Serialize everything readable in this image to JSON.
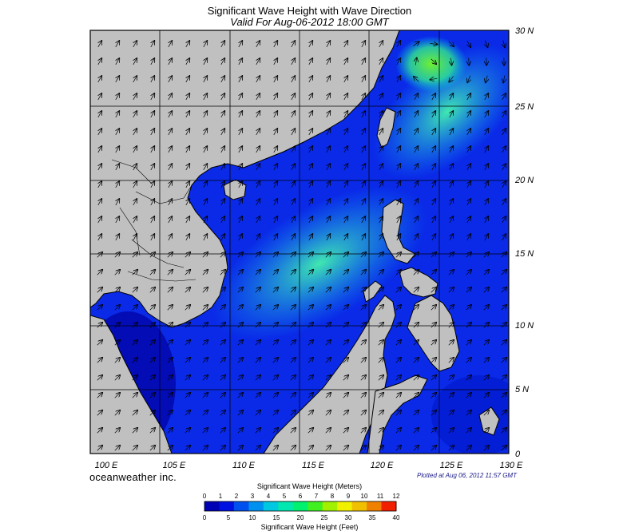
{
  "header": {
    "title": "Significant Wave Height with Wave Direction",
    "subtitle": "Valid For Aug-06-2012 18:00 GMT"
  },
  "map": {
    "lon_range": [
      100,
      130
    ],
    "lat_range": [
      0,
      30
    ],
    "lon_ticks": [
      "100 E",
      "105 E",
      "110 E",
      "115 E",
      "120 E",
      "125 E",
      "130 E"
    ],
    "lat_ticks": [
      "30 N",
      "25 N",
      "20 N",
      "15 N",
      "10 N",
      "5 N",
      "0"
    ],
    "land_color": "#c0c0c0",
    "grid": true
  },
  "branding": {
    "logo_text": "oceanweather inc.",
    "plotted": "Plotted at Aug 06, 2012 11:57 GMT"
  },
  "colorbar": {
    "title_meters": "Significant Wave Height (Meters)",
    "title_feet": "Significant Wave Height (Feet)",
    "meters_ticks": [
      "0",
      "1",
      "2",
      "3",
      "4",
      "5",
      "6",
      "7",
      "8",
      "9",
      "10",
      "11",
      "12"
    ],
    "feet_ticks": [
      "0",
      "5",
      "10",
      "15",
      "20",
      "25",
      "30",
      "35",
      "40"
    ],
    "colors": [
      "#0000b4",
      "#0010e0",
      "#0050f0",
      "#0090f0",
      "#00c8e0",
      "#00e8b0",
      "#00f070",
      "#40f020",
      "#a0f000",
      "#f0f000",
      "#f0c000",
      "#f08000",
      "#f02000"
    ]
  }
}
